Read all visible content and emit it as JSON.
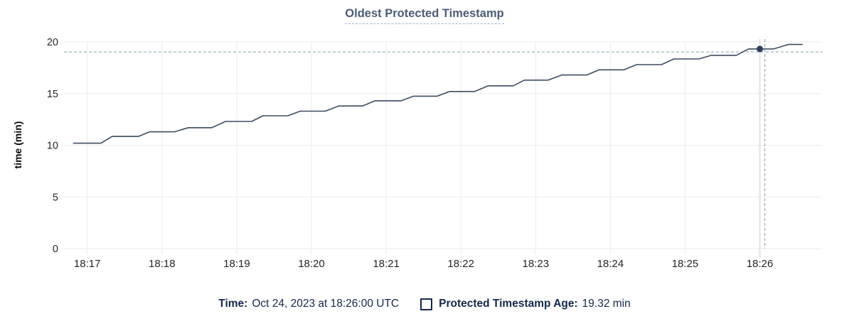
{
  "title": "Oldest Protected Timestamp",
  "colors": {
    "line": "#3d4c63",
    "marker": "#2e3e57",
    "crosshair_dash": "#9db3bf",
    "grid": "#ebebeb",
    "hover_column": "#e2e2e2",
    "title_text": "#4c5c77",
    "title_underline": "#9eb4cc",
    "legend_text": "#12294b",
    "tick_text": "#262626",
    "axis_label_text": "#0b0b0b"
  },
  "chart_data": {
    "type": "line",
    "title": "Oldest Protected Timestamp",
    "xlabel": "",
    "ylabel": "time (min)",
    "ylim": [
      0,
      20
    ],
    "y_ticks": [
      0,
      5,
      10,
      15,
      20
    ],
    "x_ticks": [
      {
        "label": "18:17",
        "t": 0
      },
      {
        "label": "18:18",
        "t": 60
      },
      {
        "label": "18:19",
        "t": 120
      },
      {
        "label": "18:20",
        "t": 180
      },
      {
        "label": "18:21",
        "t": 240
      },
      {
        "label": "18:22",
        "t": 300
      },
      {
        "label": "18:23",
        "t": 360
      },
      {
        "label": "18:24",
        "t": 420
      },
      {
        "label": "18:25",
        "t": 480
      },
      {
        "label": "18:26",
        "t": 540
      }
    ],
    "x_domain_seconds_from_1817": [
      -18.7,
      589.3
    ],
    "grid": true,
    "series": [
      {
        "name": "Protected Timestamp Age",
        "unit": "min",
        "points": [
          [
            -11,
            10.2
          ],
          [
            11,
            10.2
          ],
          [
            20,
            10.85
          ],
          [
            41,
            10.85
          ],
          [
            50,
            11.3
          ],
          [
            70,
            11.3
          ],
          [
            81,
            11.7
          ],
          [
            100,
            11.7
          ],
          [
            111,
            12.3
          ],
          [
            132,
            12.3
          ],
          [
            141,
            12.85
          ],
          [
            161,
            12.85
          ],
          [
            171,
            13.3
          ],
          [
            191,
            13.3
          ],
          [
            202,
            13.8
          ],
          [
            221,
            13.8
          ],
          [
            231,
            14.3
          ],
          [
            252,
            14.3
          ],
          [
            262,
            14.75
          ],
          [
            281,
            14.75
          ],
          [
            291,
            15.2
          ],
          [
            311,
            15.2
          ],
          [
            322,
            15.75
          ],
          [
            342,
            15.75
          ],
          [
            351,
            16.3
          ],
          [
            370,
            16.3
          ],
          [
            381,
            16.8
          ],
          [
            401,
            16.8
          ],
          [
            411,
            17.3
          ],
          [
            431,
            17.3
          ],
          [
            441,
            17.8
          ],
          [
            461,
            17.8
          ],
          [
            471,
            18.35
          ],
          [
            491,
            18.35
          ],
          [
            501,
            18.7
          ],
          [
            521,
            18.7
          ],
          [
            531,
            19.32
          ],
          [
            551,
            19.32
          ],
          [
            563,
            19.75
          ],
          [
            574,
            19.75
          ]
        ]
      }
    ],
    "hover": {
      "point_t": 540,
      "point_value": 19.32,
      "crosshair_t": 544,
      "crosshair_value": 19.03
    }
  },
  "legend": {
    "time_label": "Time:",
    "time_value": "Oct 24, 2023 at 18:26:00 UTC",
    "series_label": "Protected Timestamp Age:",
    "series_value": "19.32 min"
  }
}
